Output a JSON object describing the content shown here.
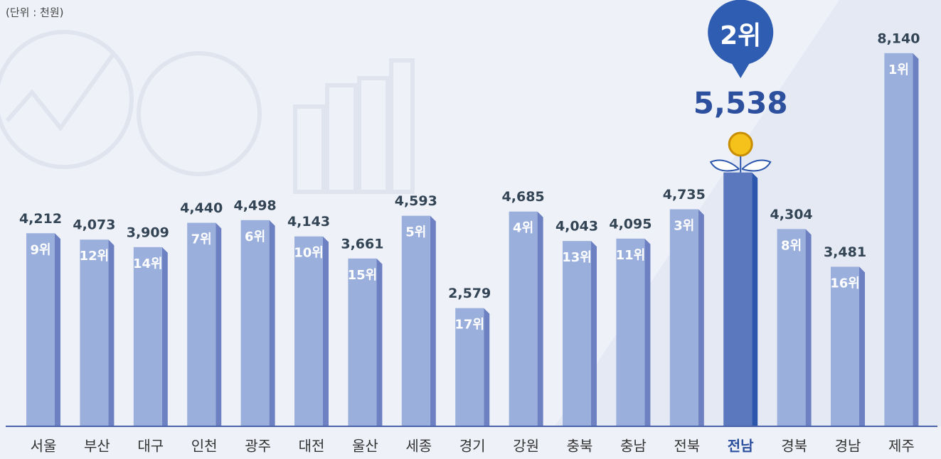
{
  "chart_data": {
    "type": "bar",
    "unit_note": "(단위 : 천원)",
    "categories": [
      "서울",
      "부산",
      "대구",
      "인천",
      "광주",
      "대전",
      "울산",
      "세종",
      "경기",
      "강원",
      "충북",
      "충남",
      "전북",
      "전남",
      "경북",
      "경남",
      "제주"
    ],
    "values": [
      4212,
      4073,
      3909,
      4440,
      4498,
      4143,
      3661,
      4593,
      2579,
      4685,
      4043,
      4095,
      4735,
      5538,
      4304,
      3481,
      8140
    ],
    "value_labels": [
      "4,212",
      "4,073",
      "3,909",
      "4,440",
      "4,498",
      "4,143",
      "3,661",
      "4,593",
      "2,579",
      "4,685",
      "4,043",
      "4,095",
      "4,735",
      "5,538",
      "4,304",
      "3,481",
      "8,140"
    ],
    "rank_labels": [
      "9위",
      "12위",
      "14위",
      "7위",
      "6위",
      "10위",
      "15위",
      "5위",
      "17위",
      "4위",
      "13위",
      "11위",
      "3위",
      "2위",
      "8위",
      "16위",
      "1위"
    ],
    "ylim": [
      0,
      9300
    ],
    "color": "#9aafdc",
    "side_color": "#6c80c2",
    "highlight_index": 13,
    "highlight_color": "#5b77bd",
    "highlight_side_color": "#2c57ad"
  }
}
